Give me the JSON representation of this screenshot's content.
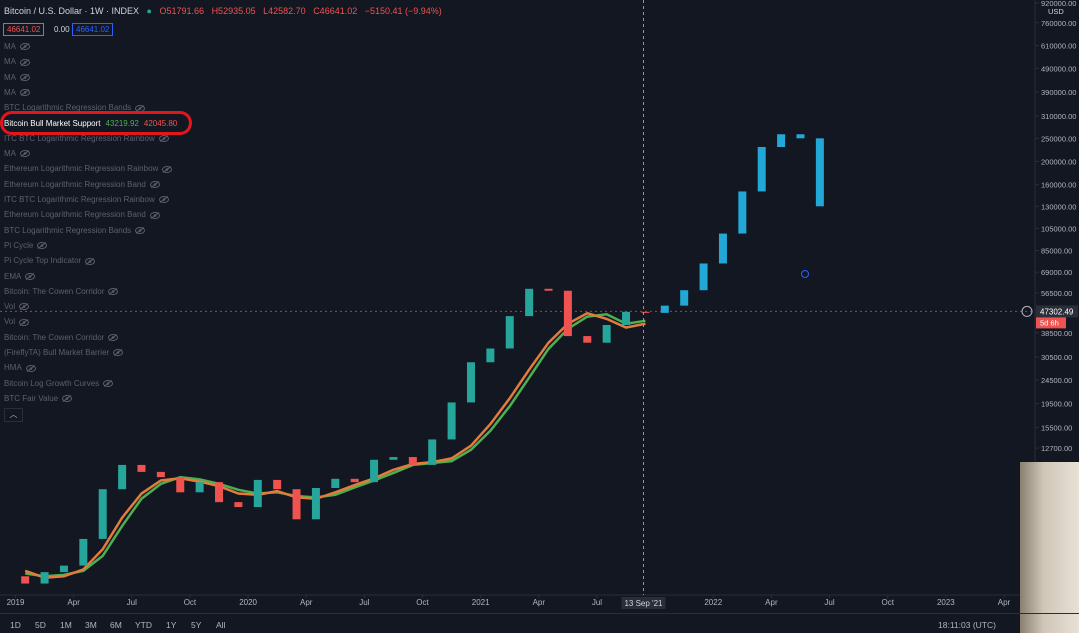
{
  "header": {
    "symbol": "Bitcoin / U.S. Dollar · 1W · INDEX",
    "open": "O51791.66",
    "high": "H52935.05",
    "low": "L42582.70",
    "close": "C46641.02",
    "change": "−5150.41 (−9.94%)",
    "box1": "46641.02",
    "box2": "0.00",
    "box3": "46641.02"
  },
  "indicators": [
    "MA",
    "MA",
    "MA",
    "MA",
    "BTC Logarithmic Regression Bands",
    "Bitcoin Bull Market Support",
    "ITC BTC Logarithmic Regression Rainbow",
    "MA",
    "Ethereum Logarithmic Regression Rainbow",
    "Ethereum Logarithmic Regression Band",
    "ITC BTC Logarithmic Regression Rainbow",
    "Ethereum Logarithmic Regression Band",
    "BTC Logarithmic Regression Bands",
    "Pi Cycle",
    "Pi Cycle Top Indicator",
    "EMA",
    "Bitcoin: The Cowen Corridor",
    "Vol",
    "Vol",
    "Bitcoin: The Cowen Corridor",
    "(FireflyTA) Bull Market Barrier",
    "HMA",
    "Bitcoin Log Growth Curves",
    "BTC Fair Value"
  ],
  "bmsb_values": [
    "43219.92",
    "42045.80"
  ],
  "chart_data": {
    "type": "candlestick",
    "log_scale": true,
    "grid": false,
    "xlim": [
      -0.8,
      52.6
    ],
    "ylim": [
      3090,
      946000
    ],
    "xticks": [
      {
        "value": 0,
        "label": "2019"
      },
      {
        "value": 3,
        "label": "Apr"
      },
      {
        "value": 6,
        "label": "Jul"
      },
      {
        "value": 9,
        "label": "Oct"
      },
      {
        "value": 12,
        "label": "2020"
      },
      {
        "value": 15,
        "label": "Apr"
      },
      {
        "value": 18,
        "label": "Jul"
      },
      {
        "value": 21,
        "label": "Oct"
      },
      {
        "value": 24,
        "label": "2021"
      },
      {
        "value": 27,
        "label": "Apr"
      },
      {
        "value": 30,
        "label": "Jul"
      },
      {
        "value": 36,
        "label": "2022"
      },
      {
        "value": 39,
        "label": "Apr"
      },
      {
        "value": 42,
        "label": "Jul"
      },
      {
        "value": 45,
        "label": "Oct"
      },
      {
        "value": 48,
        "label": "2023"
      },
      {
        "value": 51,
        "label": "Apr"
      }
    ],
    "yticks": [
      {
        "value": 920000,
        "label": "920000.00"
      },
      {
        "value": 760000,
        "label": "760000.00"
      },
      {
        "value": 610000,
        "label": "610000.00"
      },
      {
        "value": 490000,
        "label": "490000.00"
      },
      {
        "value": 390000,
        "label": "390000.00"
      },
      {
        "value": 310000,
        "label": "310000.00"
      },
      {
        "value": 250000,
        "label": "250000.00"
      },
      {
        "value": 200000,
        "label": "200000.00"
      },
      {
        "value": 160000,
        "label": "160000.00"
      },
      {
        "value": 130000,
        "label": "130000.00"
      },
      {
        "value": 105000,
        "label": "105000.00"
      },
      {
        "value": 85000,
        "label": "85000.00"
      },
      {
        "value": 69000,
        "label": "69000.00"
      },
      {
        "value": 56500,
        "label": "56500.00"
      },
      {
        "value": 38500,
        "label": "38500.00"
      },
      {
        "value": 30500,
        "label": "30500.00"
      },
      {
        "value": 24500,
        "label": "24500.00"
      },
      {
        "value": 19500,
        "label": "19500.00"
      },
      {
        "value": 15500,
        "label": "15500.00"
      },
      {
        "value": 12700,
        "label": "12700.00"
      }
    ],
    "currency": "USD",
    "last_price": 47302.49,
    "countdown": "5d 6h",
    "crosshair_x": 32.4,
    "crosshair_label": "13 Sep '21",
    "up_color": "#26a69a",
    "down_color": "#ef5350",
    "projection_color": "#22a7d6",
    "candles": {
      "x": [
        0.5,
        1.5,
        2.5,
        3.5,
        4.5,
        5.5,
        6.5,
        7.5,
        8.5,
        9.5,
        10.5,
        11.5,
        12.5,
        13.5,
        14.5,
        15.5,
        16.5,
        17.5,
        18.5,
        19.5,
        20.5,
        21.5,
        22.5,
        23.5,
        24.5,
        25.5,
        26.5,
        27.5,
        28.5,
        29.5,
        30.5,
        31.5,
        32.5
      ],
      "open": [
        3700,
        3450,
        3850,
        4100,
        5300,
        8550,
        10800,
        10100,
        9600,
        8300,
        9150,
        7550,
        7200,
        9350,
        8550,
        6400,
        8650,
        9450,
        9150,
        11350,
        11650,
        10800,
        13800,
        19700,
        29000,
        33100,
        45200,
        58800,
        57700,
        37300,
        35000,
        41500,
        47100
      ],
      "close": [
        3450,
        3850,
        4100,
        5300,
        8550,
        10800,
        10100,
        9600,
        8300,
        9150,
        7550,
        7200,
        9350,
        8550,
        6400,
        8650,
        9450,
        9150,
        11350,
        11650,
        10800,
        13800,
        19700,
        29000,
        33100,
        45200,
        58800,
        57700,
        37300,
        35000,
        41500,
        47100,
        46641
      ]
    },
    "projection": {
      "x": [
        33.5,
        34.5,
        35.5,
        36.5,
        37.5,
        38.5,
        39.5,
        40.5,
        41.5
      ],
      "open": [
        46641,
        50000,
        58000,
        75000,
        100000,
        150000,
        230000,
        260000,
        250000
      ],
      "close": [
        50000,
        58000,
        75000,
        100000,
        150000,
        230000,
        260000,
        250000,
        130000
      ]
    },
    "series": [
      {
        "name": "SMA",
        "color": "#4caf50",
        "values": [
          3800,
          3700,
          3750,
          3900,
          4500,
          6000,
          7800,
          9000,
          9600,
          9400,
          9000,
          8500,
          8200,
          8300,
          8000,
          7900,
          8100,
          8700,
          9300,
          10000,
          10800,
          11000,
          11200,
          12500,
          15000,
          19000,
          25000,
          33000,
          40000,
          45000,
          46000,
          42000,
          43200
        ]
      },
      {
        "name": "EMA",
        "color": "#e57b3a",
        "values": [
          3900,
          3650,
          3700,
          3950,
          4800,
          6500,
          8200,
          9300,
          9500,
          9200,
          8800,
          8200,
          8100,
          8400,
          7900,
          7800,
          8300,
          8900,
          9500,
          10300,
          10900,
          11100,
          11500,
          13000,
          16000,
          20500,
          27000,
          35000,
          42000,
          46500,
          44000,
          40500,
          42000
        ]
      }
    ]
  },
  "toolbar": {
    "ranges": [
      "1D",
      "5D",
      "1M",
      "3M",
      "6M",
      "YTD",
      "1Y",
      "5Y",
      "All"
    ],
    "time": "18:11:03 (UTC)"
  }
}
